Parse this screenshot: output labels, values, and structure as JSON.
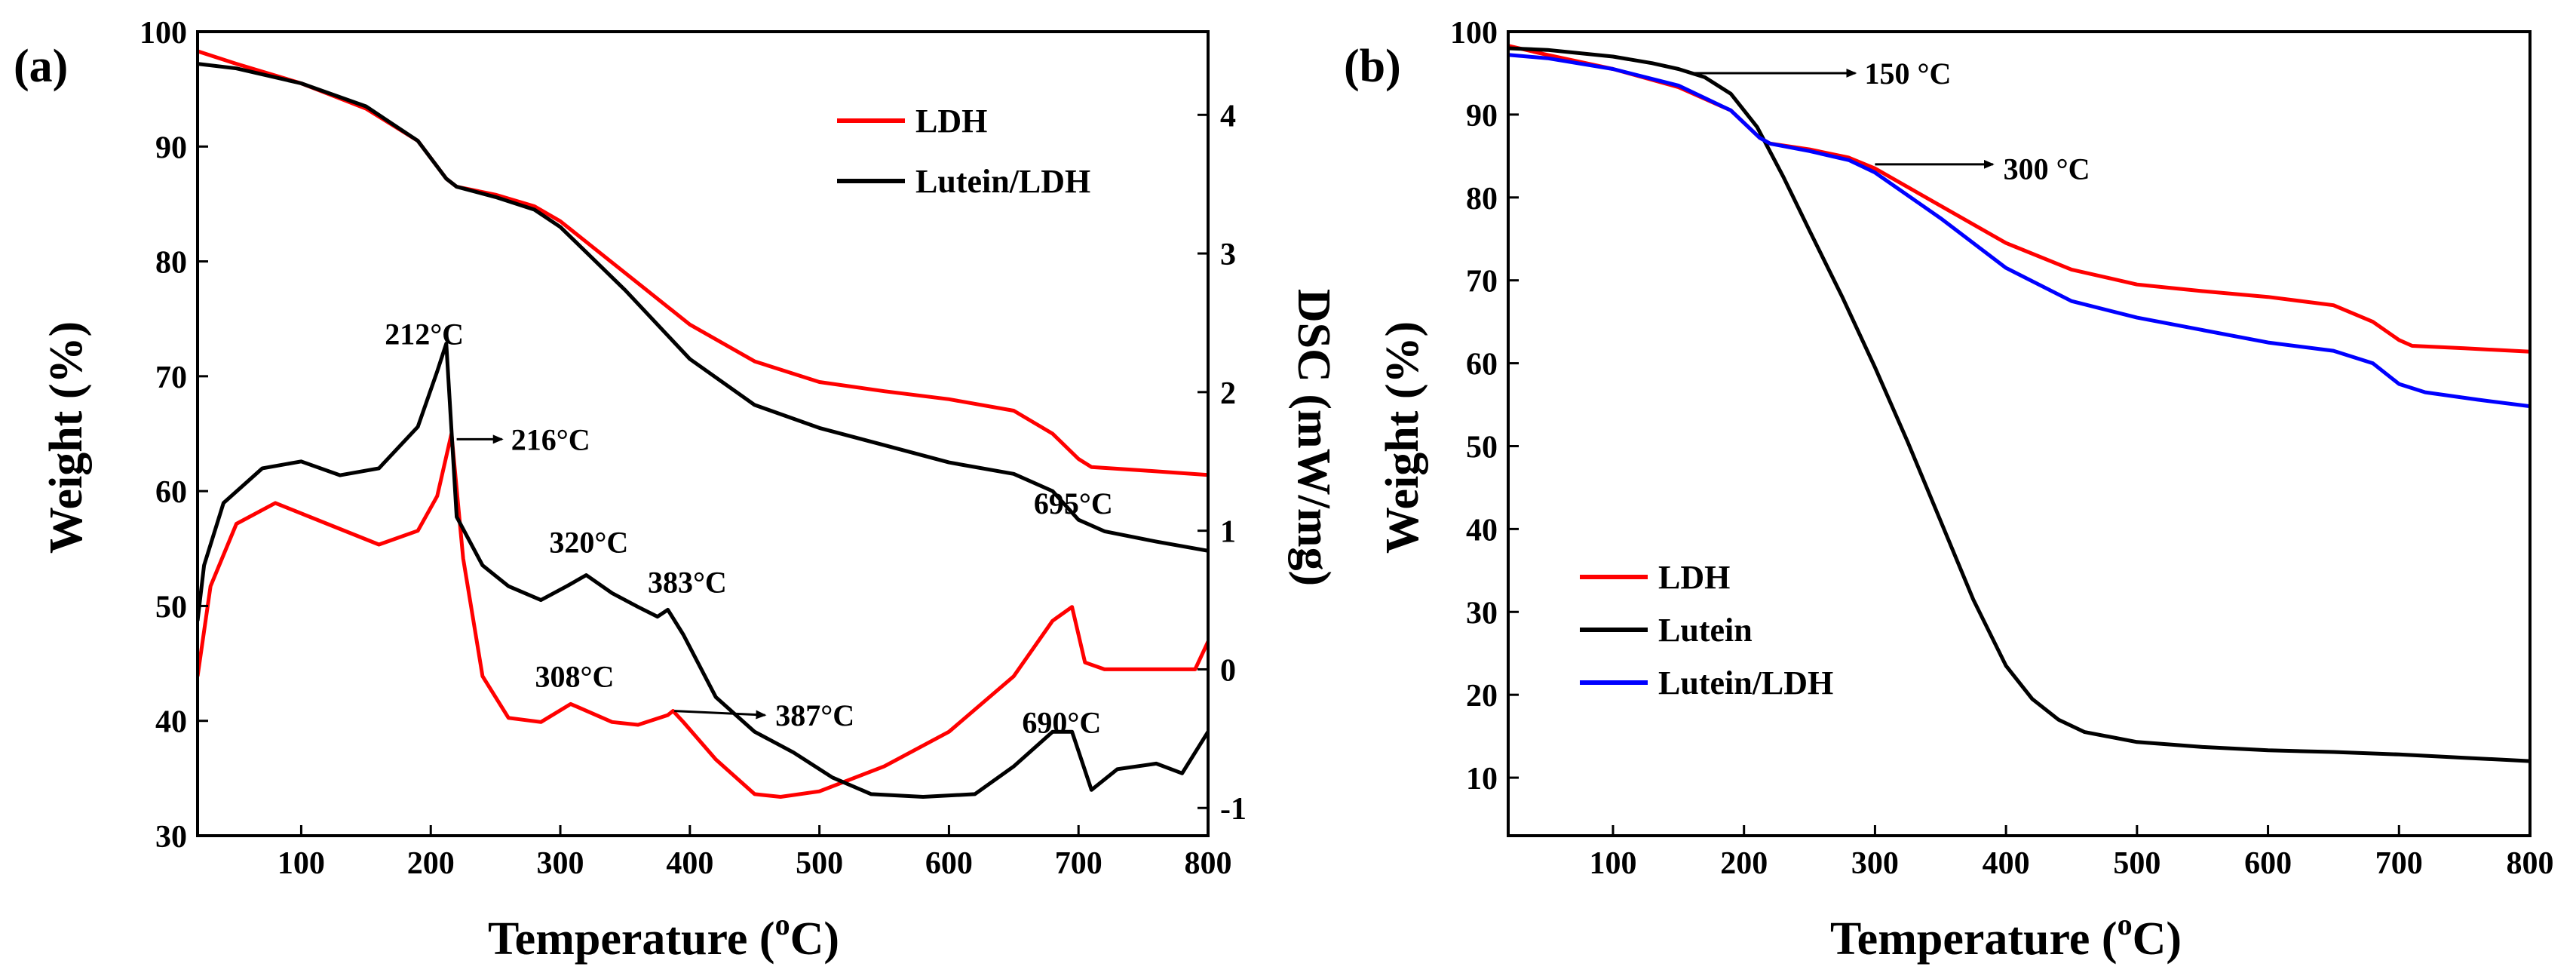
{
  "chart_data": [
    {
      "panel_label": "(a)",
      "type": "line",
      "xlabel_main": "Temperature (",
      "xlabel_sup": "o",
      "xlabel_end": "C)",
      "ylabel": "Weight (%)",
      "y2label": "DSC (mW/mg)",
      "xlim": [
        20,
        800
      ],
      "ylim": [
        30,
        100
      ],
      "y2lim": [
        -1.2,
        4.6
      ],
      "xticks": [
        100,
        200,
        300,
        400,
        500,
        600,
        700,
        800
      ],
      "yticks": [
        30,
        40,
        50,
        60,
        70,
        80,
        90,
        100
      ],
      "y2ticks": [
        -1,
        0,
        1,
        2,
        3,
        4
      ],
      "legend_position": "top-right",
      "legend": [
        {
          "label": "LDH",
          "color": "#ff0000"
        },
        {
          "label": "Lutein/LDH",
          "color": "#000000"
        }
      ],
      "series": [
        {
          "name": "LDH TG",
          "axis": "left",
          "color": "#ff0000",
          "x": [
            20,
            50,
            100,
            150,
            190,
            212,
            220,
            250,
            280,
            300,
            350,
            400,
            450,
            500,
            550,
            600,
            650,
            680,
            700,
            710,
            750,
            800
          ],
          "y": [
            98.3,
            97.2,
            95.5,
            93.3,
            90.5,
            87.2,
            86.5,
            85.8,
            84.8,
            83.5,
            79,
            74.5,
            71.3,
            69.5,
            68.7,
            68,
            67,
            65,
            62.8,
            62.1,
            61.8,
            61.4
          ]
        },
        {
          "name": "Lutein/LDH TG",
          "axis": "left",
          "color": "#000000",
          "x": [
            20,
            50,
            100,
            150,
            190,
            212,
            220,
            250,
            280,
            300,
            350,
            400,
            450,
            500,
            550,
            600,
            650,
            680,
            700,
            720,
            760,
            800
          ],
          "y": [
            97.2,
            96.8,
            95.5,
            93.5,
            90.5,
            87.2,
            86.5,
            85.6,
            84.5,
            83,
            77.5,
            71.5,
            67.5,
            65.5,
            64,
            62.5,
            61.5,
            60,
            57.5,
            56.5,
            55.6,
            54.8
          ]
        },
        {
          "name": "LDH DSC",
          "axis": "right",
          "color": "#ff0000",
          "x": [
            20,
            30,
            50,
            80,
            120,
            160,
            190,
            205,
            216,
            225,
            240,
            260,
            285,
            308,
            340,
            360,
            383,
            387,
            395,
            420,
            450,
            470,
            500,
            550,
            600,
            650,
            680,
            695,
            705,
            720,
            760,
            790,
            800
          ],
          "y": [
            -0.05,
            0.6,
            1.05,
            1.2,
            1.05,
            0.9,
            1.0,
            1.25,
            1.7,
            0.8,
            -0.05,
            -0.35,
            -0.38,
            -0.25,
            -0.38,
            -0.4,
            -0.33,
            -0.3,
            -0.38,
            -0.65,
            -0.9,
            -0.92,
            -0.88,
            -0.7,
            -0.45,
            -0.05,
            0.35,
            0.45,
            0.05,
            0.0,
            0.0,
            0.0,
            0.2
          ]
        },
        {
          "name": "Lutein/LDH DSC",
          "axis": "right",
          "color": "#000000",
          "x": [
            20,
            25,
            40,
            70,
            100,
            130,
            160,
            190,
            205,
            212,
            220,
            240,
            260,
            285,
            305,
            320,
            340,
            360,
            375,
            383,
            395,
            420,
            450,
            480,
            510,
            540,
            580,
            620,
            650,
            680,
            695,
            710,
            730,
            760,
            780,
            800
          ],
          "y": [
            0.35,
            0.75,
            1.2,
            1.45,
            1.5,
            1.4,
            1.45,
            1.75,
            2.15,
            2.35,
            1.1,
            0.75,
            0.6,
            0.5,
            0.6,
            0.68,
            0.55,
            0.45,
            0.38,
            0.43,
            0.25,
            -0.2,
            -0.45,
            -0.6,
            -0.78,
            -0.9,
            -0.92,
            -0.9,
            -0.7,
            -0.45,
            -0.45,
            -0.87,
            -0.72,
            -0.68,
            -0.75,
            -0.45
          ]
        }
      ],
      "annotations": [
        {
          "text": "212°C",
          "x": 195,
          "y": 2.42,
          "axis": "right",
          "anchor": "middle"
        },
        {
          "text": "216°C",
          "x": 262,
          "y": 1.66,
          "axis": "right",
          "anchor": "start",
          "arrow_from": [
            220,
            1.66
          ],
          "arrow_to": [
            255,
            1.66
          ]
        },
        {
          "text": "320°C",
          "x": 322,
          "y": 0.92,
          "axis": "right",
          "anchor": "middle"
        },
        {
          "text": "383°C",
          "x": 398,
          "y": 0.63,
          "axis": "right",
          "anchor": "middle"
        },
        {
          "text": "308°C",
          "x": 311,
          "y": -0.05,
          "axis": "right",
          "anchor": "middle"
        },
        {
          "text": "387°C",
          "x": 466,
          "y": -0.33,
          "axis": "right",
          "anchor": "start",
          "arrow_from": [
            388,
            -0.3
          ],
          "arrow_to": [
            458,
            -0.33
          ]
        },
        {
          "text": "695°C",
          "x": 696,
          "y": 1.2,
          "axis": "right",
          "anchor": "middle"
        },
        {
          "text": "690°C",
          "x": 687,
          "y": -0.38,
          "axis": "right",
          "anchor": "middle"
        }
      ]
    },
    {
      "panel_label": "(b)",
      "type": "line",
      "xlabel_main": "Temperature (",
      "xlabel_sup": "o",
      "xlabel_end": "C)",
      "ylabel": "Weight (%)",
      "xlim": [
        20,
        800
      ],
      "ylim": [
        3,
        100
      ],
      "xticks": [
        100,
        200,
        300,
        400,
        500,
        600,
        700,
        800
      ],
      "yticks": [
        10,
        20,
        30,
        40,
        50,
        60,
        70,
        80,
        90,
        100
      ],
      "legend_position": "bottom-left",
      "legend": [
        {
          "label": "LDH",
          "color": "#ff0000"
        },
        {
          "label": "Lutein",
          "color": "#000000"
        },
        {
          "label": "Lutein/LDH",
          "color": "#0000ff"
        }
      ],
      "series": [
        {
          "name": "LDH",
          "color": "#ff0000",
          "x": [
            20,
            50,
            100,
            150,
            190,
            212,
            220,
            250,
            280,
            300,
            350,
            400,
            450,
            500,
            550,
            600,
            650,
            680,
            700,
            710,
            750,
            800
          ],
          "y": [
            98.3,
            97.2,
            95.5,
            93.3,
            90.5,
            87.2,
            86.5,
            85.8,
            84.8,
            83.5,
            79,
            74.5,
            71.3,
            69.5,
            68.7,
            68,
            67,
            65,
            62.8,
            62.1,
            61.8,
            61.4
          ]
        },
        {
          "name": "Lutein",
          "color": "#000000",
          "x": [
            20,
            50,
            100,
            130,
            150,
            170,
            190,
            210,
            230,
            250,
            275,
            300,
            325,
            350,
            375,
            400,
            420,
            440,
            460,
            500,
            550,
            600,
            650,
            700,
            750,
            800
          ],
          "y": [
            98,
            97.8,
            97,
            96.2,
            95.5,
            94.5,
            92.5,
            88.5,
            82.5,
            76,
            68,
            59.5,
            50.5,
            41,
            31.5,
            23.5,
            19.5,
            17,
            15.5,
            14.3,
            13.7,
            13.3,
            13.1,
            12.8,
            12.4,
            12
          ]
        },
        {
          "name": "Lutein/LDH",
          "color": "#0000ff",
          "x": [
            20,
            50,
            100,
            150,
            190,
            212,
            220,
            250,
            280,
            300,
            350,
            400,
            450,
            500,
            550,
            600,
            650,
            680,
            700,
            720,
            760,
            800
          ],
          "y": [
            97.2,
            96.8,
            95.5,
            93.5,
            90.5,
            87.2,
            86.5,
            85.6,
            84.5,
            83,
            77.5,
            71.5,
            67.5,
            65.5,
            64,
            62.5,
            61.5,
            60,
            57.5,
            56.5,
            55.6,
            54.8
          ]
        }
      ],
      "annotations": [
        {
          "text": "150 °C",
          "x": 292,
          "y": 95,
          "anchor": "start",
          "arrow_from": [
            160,
            95
          ],
          "arrow_to": [
            285,
            95
          ]
        },
        {
          "text": "300 °C",
          "x": 398,
          "y": 83.5,
          "anchor": "start",
          "arrow_from": [
            300,
            84
          ],
          "arrow_to": [
            390,
            84
          ]
        }
      ]
    }
  ]
}
